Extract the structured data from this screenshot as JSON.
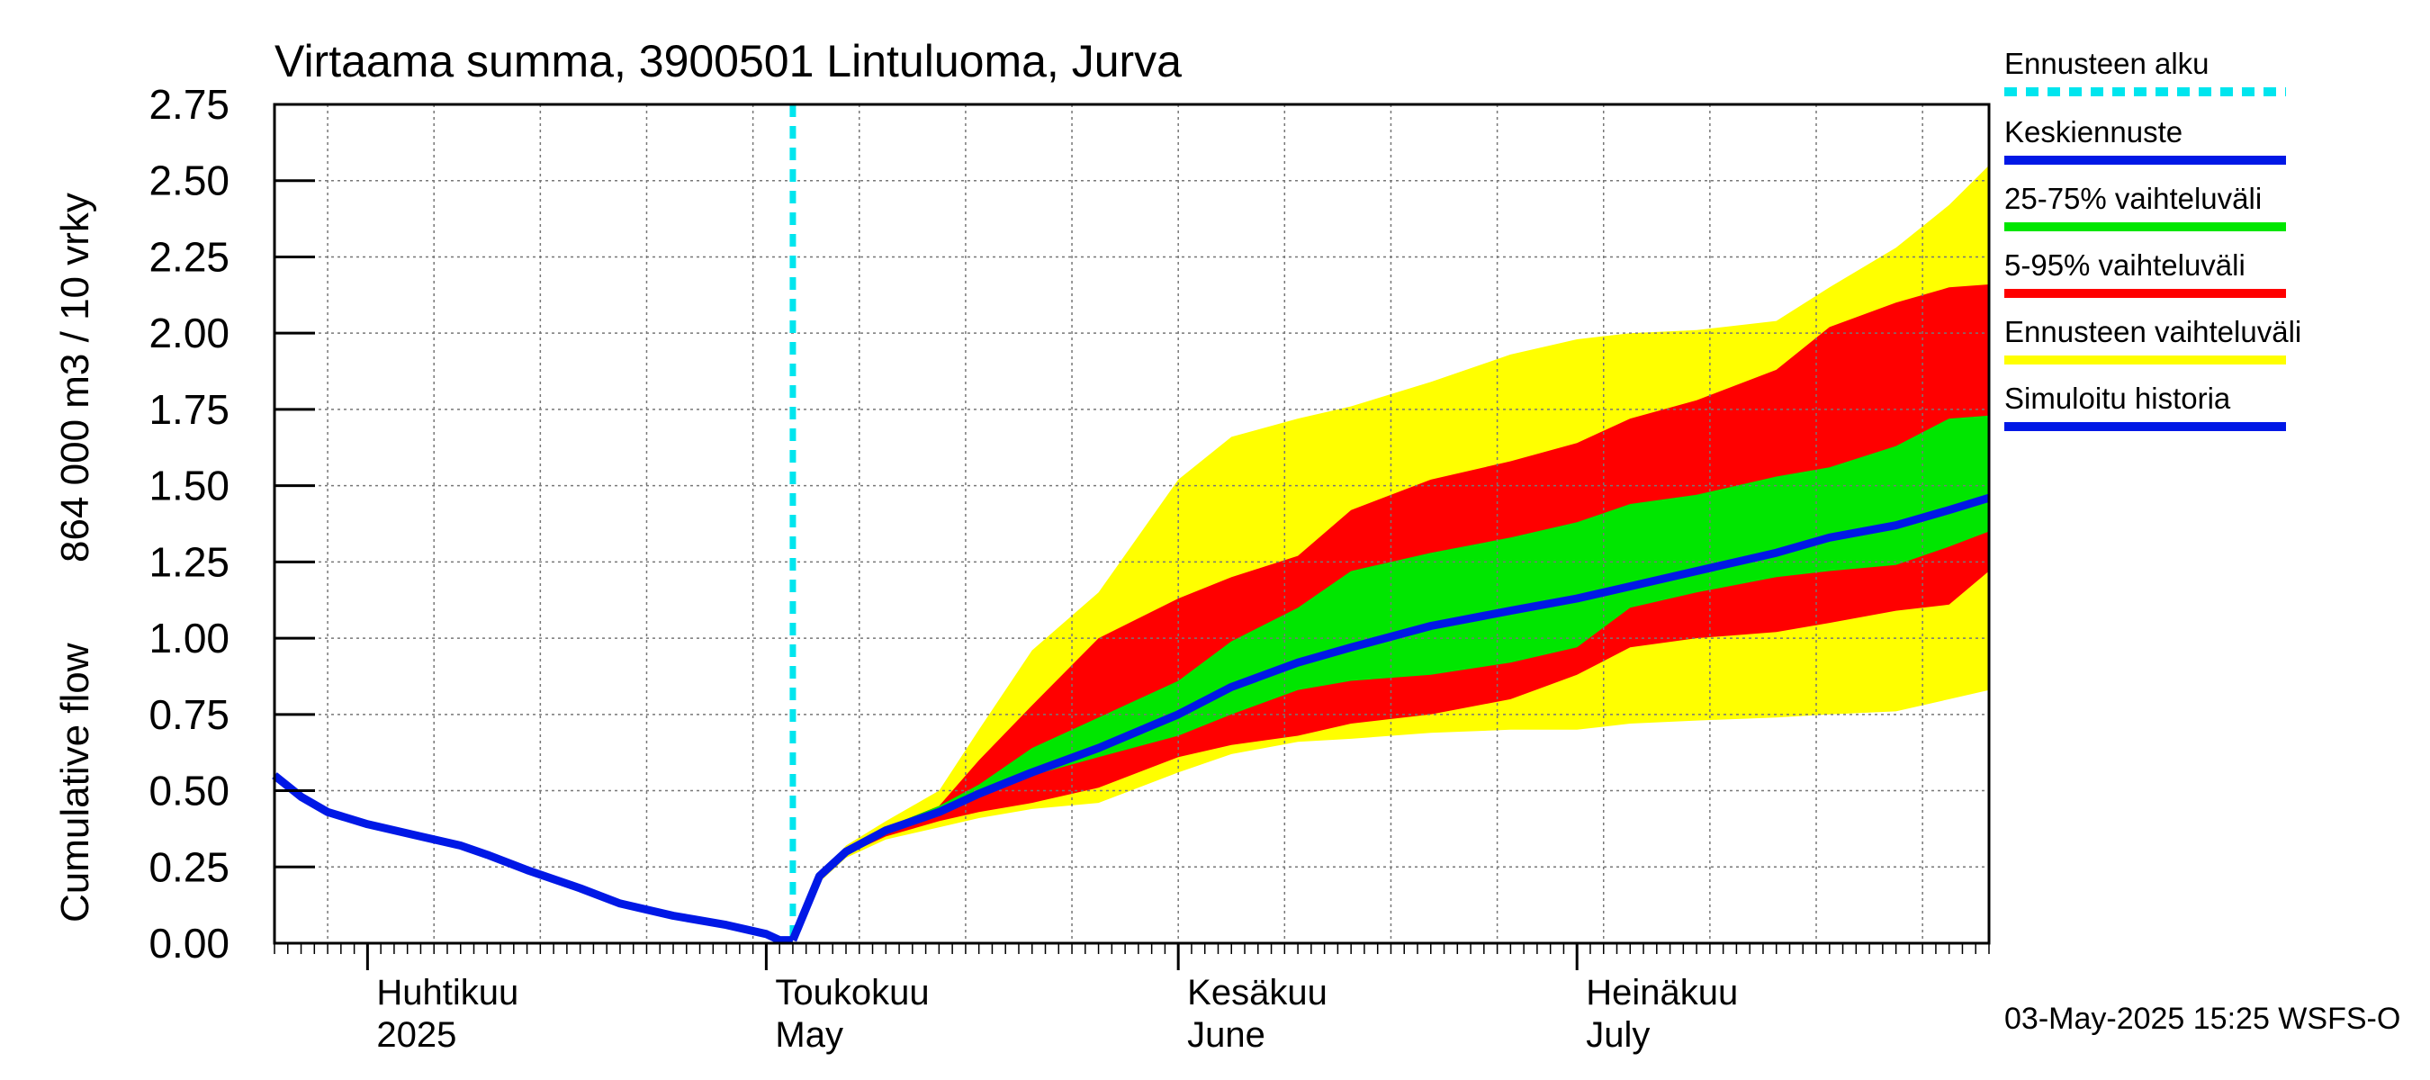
{
  "chart_data": {
    "type": "area",
    "title": "Virtaama summa, 3900501 Lintuluoma, Jurva",
    "ylabel_left": "Cumulative flow",
    "ylabel_right": "864 000 m3 / 10 vrky",
    "ylim": [
      0,
      2.75
    ],
    "y_ticks": [
      "0.00",
      "0.25",
      "0.50",
      "0.75",
      "1.00",
      "1.25",
      "1.50",
      "1.75",
      "2.00",
      "2.25",
      "2.50",
      "2.75"
    ],
    "x_range": [
      "2025-03-25",
      "2025-08-01"
    ],
    "grid": true,
    "month_labels": [
      {
        "fi": "Huhtikuu",
        "en": "2025",
        "date": "2025-04-01"
      },
      {
        "fi": "Toukokuu",
        "en": "May",
        "date": "2025-05-01"
      },
      {
        "fi": "Kesäkuu",
        "en": "June",
        "date": "2025-06-01"
      },
      {
        "fi": "Heinäkuu",
        "en": "July",
        "date": "2025-07-01"
      }
    ],
    "forecast_start": "2025-05-03",
    "legend": [
      {
        "label": "Ennusteen alku",
        "color": "#00e5ee",
        "style": "dashed"
      },
      {
        "label": "Keskiennuste",
        "color": "#0018e6",
        "style": "solid"
      },
      {
        "label": "25-75% vaihteluväli",
        "color": "#00e600",
        "style": "solid"
      },
      {
        "label": "5-95% vaihteluväli",
        "color": "#ff0000",
        "style": "solid"
      },
      {
        "label": "Ennusteen vaihteluväli",
        "color": "#ffff00",
        "style": "solid"
      },
      {
        "label": "Simuloitu historia",
        "color": "#0018e6",
        "style": "solid"
      }
    ],
    "legend_position": "right",
    "footer": "03-May-2025 15:25 WSFS-O",
    "history": {
      "x": [
        "2025-03-25",
        "2025-03-27",
        "2025-03-29",
        "2025-04-01",
        "2025-04-05",
        "2025-04-08",
        "2025-04-10",
        "2025-04-13",
        "2025-04-17",
        "2025-04-20",
        "2025-04-24",
        "2025-04-28",
        "2025-05-01",
        "2025-05-02"
      ],
      "y": [
        0.55,
        0.48,
        0.43,
        0.39,
        0.35,
        0.32,
        0.29,
        0.24,
        0.18,
        0.13,
        0.09,
        0.06,
        0.03,
        0.01
      ]
    },
    "forecast_x": [
      "2025-05-03",
      "2025-05-05",
      "2025-05-07",
      "2025-05-10",
      "2025-05-14",
      "2025-05-17",
      "2025-05-21",
      "2025-05-26",
      "2025-06-01",
      "2025-06-05",
      "2025-06-10",
      "2025-06-14",
      "2025-06-20",
      "2025-06-26",
      "2025-07-01",
      "2025-07-05",
      "2025-07-10",
      "2025-07-16",
      "2025-07-20",
      "2025-07-25",
      "2025-07-29",
      "2025-08-01"
    ],
    "series": [
      {
        "name": "Ennusteen vaihteluväli",
        "color": "#ffff00",
        "lower": [
          0.01,
          0.2,
          0.28,
          0.34,
          0.38,
          0.41,
          0.44,
          0.46,
          0.56,
          0.62,
          0.66,
          0.67,
          0.69,
          0.7,
          0.7,
          0.72,
          0.73,
          0.74,
          0.75,
          0.76,
          0.8,
          0.83
        ],
        "upper": [
          0.01,
          0.22,
          0.32,
          0.4,
          0.5,
          0.7,
          0.96,
          1.15,
          1.52,
          1.66,
          1.72,
          1.76,
          1.84,
          1.93,
          1.98,
          2.0,
          2.01,
          2.04,
          2.15,
          2.28,
          2.42,
          2.55
        ]
      },
      {
        "name": "5-95% vaihteluväli",
        "color": "#ff0000",
        "lower": [
          0.01,
          0.21,
          0.29,
          0.35,
          0.4,
          0.43,
          0.46,
          0.51,
          0.61,
          0.65,
          0.68,
          0.72,
          0.75,
          0.8,
          0.88,
          0.97,
          1.0,
          1.02,
          1.05,
          1.09,
          1.11,
          1.22
        ],
        "upper": [
          0.01,
          0.22,
          0.31,
          0.38,
          0.45,
          0.6,
          0.78,
          1.0,
          1.13,
          1.2,
          1.27,
          1.42,
          1.52,
          1.58,
          1.64,
          1.72,
          1.78,
          1.88,
          2.02,
          2.1,
          2.15,
          2.16
        ]
      },
      {
        "name": "25-75% vaihteluväli",
        "color": "#00e600",
        "lower": [
          0.01,
          0.21,
          0.3,
          0.37,
          0.43,
          0.49,
          0.55,
          0.61,
          0.68,
          0.75,
          0.83,
          0.86,
          0.88,
          0.92,
          0.97,
          1.1,
          1.15,
          1.2,
          1.22,
          1.24,
          1.3,
          1.35
        ],
        "upper": [
          0.01,
          0.22,
          0.31,
          0.38,
          0.45,
          0.52,
          0.64,
          0.74,
          0.86,
          0.99,
          1.1,
          1.22,
          1.28,
          1.33,
          1.38,
          1.44,
          1.47,
          1.53,
          1.56,
          1.63,
          1.72,
          1.73
        ]
      },
      {
        "name": "Keskiennuste",
        "color": "#0018e6",
        "values": [
          0.01,
          0.22,
          0.3,
          0.37,
          0.43,
          0.49,
          0.56,
          0.64,
          0.75,
          0.84,
          0.92,
          0.97,
          1.04,
          1.09,
          1.13,
          1.17,
          1.22,
          1.28,
          1.33,
          1.37,
          1.42,
          1.46
        ]
      }
    ]
  }
}
